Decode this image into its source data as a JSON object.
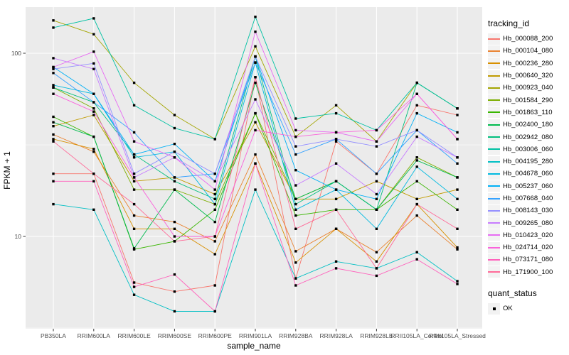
{
  "legend": {
    "tracking_title": "tracking_id",
    "quant_title": "quant_status",
    "quant_ok_label": "OK",
    "quant_ok_symbol": "filled-black-square"
  },
  "style": {
    "panel_bg": "#EBEBEB",
    "grid_color": "#FFFFFF",
    "tick_text_color": "#4D4D4D",
    "point_color": "#000000",
    "legend_key_bg": "#F2F2F2"
  },
  "chart_data": {
    "type": "line",
    "title": "",
    "xlabel": "sample_name",
    "ylabel": "FPKM + 1",
    "yscale": "log10",
    "ylim": [
      3,
      180
    ],
    "grid": true,
    "legend_position": "right",
    "point_shape": "filled-square",
    "y_major_ticks": [
      100,
      10
    ],
    "y_minor_ticks": [
      31.6,
      3.16
    ],
    "categories": [
      "PB350LA",
      "RRIM600LA",
      "RRIM600LE",
      "RRIM600SE",
      "RRIM600PE",
      "RRIM901LA",
      "RRIM928BA",
      "RRIM928LA",
      "RRIM928LE",
      "RRII105LA_Control",
      "RRII105LA_Stressed"
    ],
    "series": [
      {
        "name": "Hb_000088_200",
        "color": "#F8766D",
        "values": [
          22,
          22,
          5.6,
          5.0,
          5.4,
          74,
          5.9,
          33,
          22,
          52,
          46
        ]
      },
      {
        "name": "Hb_000104_080",
        "color": "#EA8331",
        "values": [
          36,
          29,
          13,
          12,
          9.4,
          28,
          8.3,
          11,
          8.2,
          13,
          8.5
        ]
      },
      {
        "name": "Hb_000236_280",
        "color": "#D89000",
        "values": [
          34,
          30,
          11,
          11,
          8.0,
          25,
          7.2,
          11,
          7.3,
          15,
          8.7
        ]
      },
      {
        "name": "Hb_000640_320",
        "color": "#C09B00",
        "values": [
          40,
          46,
          20,
          21,
          17,
          42,
          16,
          16,
          20,
          16,
          18
        ]
      },
      {
        "name": "Hb_000923_040",
        "color": "#A3A500",
        "values": [
          151,
          127,
          69,
          46,
          34,
          109,
          35,
          52,
          33,
          69,
          50
        ]
      },
      {
        "name": "Hb_001584_290",
        "color": "#7CAE00",
        "values": [
          65,
          50,
          18,
          18,
          15,
          47,
          16,
          20,
          14,
          27,
          21
        ]
      },
      {
        "name": "Hb_001863_110",
        "color": "#39B600",
        "values": [
          45,
          35,
          8.5,
          9.4,
          14,
          47,
          13,
          14,
          14,
          20,
          14
        ]
      },
      {
        "name": "Hb_002400_180",
        "color": "#00BB4E",
        "values": [
          42,
          35,
          8.6,
          18,
          12,
          69,
          16,
          20,
          14,
          26,
          21
        ]
      },
      {
        "name": "Hb_002942_080",
        "color": "#00BF7D",
        "values": [
          65,
          54,
          28,
          20,
          16,
          96,
          15,
          20,
          14,
          69,
          50
        ]
      },
      {
        "name": "Hb_003006_060",
        "color": "#00C1A3",
        "values": [
          138,
          155,
          52,
          39,
          34,
          158,
          44,
          47,
          38,
          69,
          50
        ]
      },
      {
        "name": "Hb_004195_280",
        "color": "#00BFC4",
        "values": [
          15,
          14,
          4.8,
          3.9,
          3.9,
          18,
          5.9,
          7.3,
          6.7,
          8.2,
          5.7
        ]
      },
      {
        "name": "Hb_004678_060",
        "color": "#00BAE0",
        "values": [
          67,
          60,
          27,
          29,
          15,
          89,
          14,
          18,
          11,
          24,
          16
        ]
      },
      {
        "name": "Hb_005237_060",
        "color": "#00B0F6",
        "values": [
          84,
          60,
          28,
          32,
          20,
          96,
          23,
          18,
          16,
          47,
          37
        ]
      },
      {
        "name": "Hb_007668_040",
        "color": "#35A2FF",
        "values": [
          78,
          54,
          37,
          21,
          22,
          89,
          28,
          34,
          22,
          38,
          25
        ]
      },
      {
        "name": "Hb_008143_030",
        "color": "#9590FF",
        "values": [
          82,
          88,
          22,
          29,
          22,
          96,
          31,
          34,
          31,
          38,
          27
        ]
      },
      {
        "name": "Hb_009265_080",
        "color": "#C77CFF",
        "values": [
          94,
          82,
          21,
          27,
          20,
          56,
          19,
          25,
          17,
          35,
          27
        ]
      },
      {
        "name": "Hb_010423_020",
        "color": "#E76BF3",
        "values": [
          84,
          102,
          33,
          27,
          18,
          131,
          38,
          37,
          33,
          60,
          34
        ]
      },
      {
        "name": "Hb_024714_020",
        "color": "#FA62DB",
        "values": [
          60,
          48,
          21,
          10,
          10,
          38,
          35,
          37,
          38,
          60,
          34
        ]
      },
      {
        "name": "Hb_073171_080",
        "color": "#FF62BC",
        "values": [
          20,
          20,
          5.3,
          6.2,
          3.9,
          25,
          5.4,
          6.7,
          6.1,
          7.5,
          5.5
        ]
      },
      {
        "name": "Hb_171900_100",
        "color": "#FF6A98",
        "values": [
          33,
          22,
          15,
          9.4,
          10,
          74,
          11,
          14,
          6.7,
          15,
          11
        ]
      }
    ],
    "quant_status": "OK"
  }
}
